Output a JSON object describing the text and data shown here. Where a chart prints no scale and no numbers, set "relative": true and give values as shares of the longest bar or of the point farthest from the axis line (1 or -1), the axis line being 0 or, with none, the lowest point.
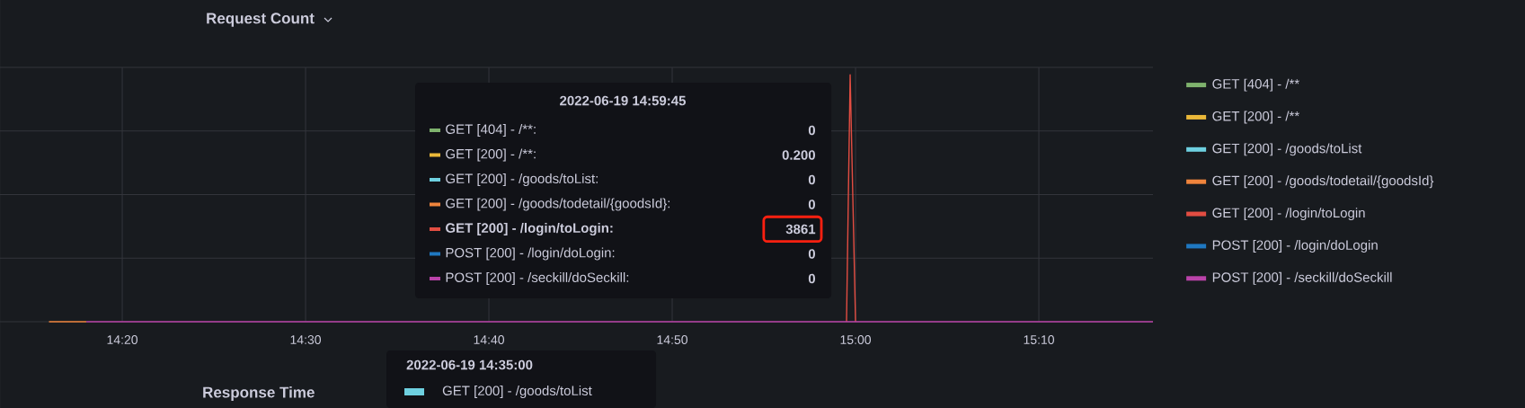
{
  "chart_data": {
    "type": "line",
    "title": "Request Count",
    "relative": true,
    "grid": true,
    "legend": "right",
    "marker": "none",
    "xlim": [
      14.2222,
      15.2704
    ],
    "xticks": [
      {
        "value": 14.3333333,
        "label": "14:20"
      },
      {
        "value": 14.5,
        "label": "14:30"
      },
      {
        "value": 14.6666667,
        "label": "14:40"
      },
      {
        "value": 14.8333333,
        "label": "14:50"
      },
      {
        "value": 15,
        "label": "15:00"
      },
      {
        "value": 15.1666667,
        "label": "15:10"
      }
    ],
    "series": [
      {
        "name": "GET [404] - /**",
        "color": "#7eb26d"
      },
      {
        "name": "GET [200] - /**",
        "color": "#eab839"
      },
      {
        "name": "GET [200] - /goods/toList",
        "color": "#6ed0e0"
      },
      {
        "name": "GET [200] - /goods/todetail/{goodsId}",
        "color": "#ef843c",
        "x": [
          14.2667,
          14.3007
        ],
        "values": [
          0,
          0
        ]
      },
      {
        "name": "GET [200] - /login/toLogin",
        "color": "#e24d42",
        "x": [
          14.9918,
          14.9951,
          15.0
        ],
        "values": [
          0,
          1,
          0
        ]
      },
      {
        "name": "POST [200] - /login/doLogin",
        "color": "#1f78c1"
      },
      {
        "name": "POST [200] - /seckill/doSeckill",
        "color": "#ba43a9",
        "x": [
          14.3007,
          15.2704
        ],
        "values": [
          0,
          0
        ]
      }
    ],
    "annotations": [
      "2022-06-19 14:59:45",
      "GET [404] - /**:",
      "GET [200] - /**:",
      "GET [200] - /goods/toList:",
      "GET [200] - /goods/todetail/{goodsId}:",
      "GET [200] - /login/toLogin:",
      "POST [200] - /login/doLogin:",
      "POST [200] - /seckill/doSeckill:",
      "0",
      "0.200",
      "0",
      "0",
      "3861",
      "0",
      "0",
      "2022-06-19 14:35:00",
      "GET [200] - /goods/toList",
      "Response Time"
    ]
  }
}
